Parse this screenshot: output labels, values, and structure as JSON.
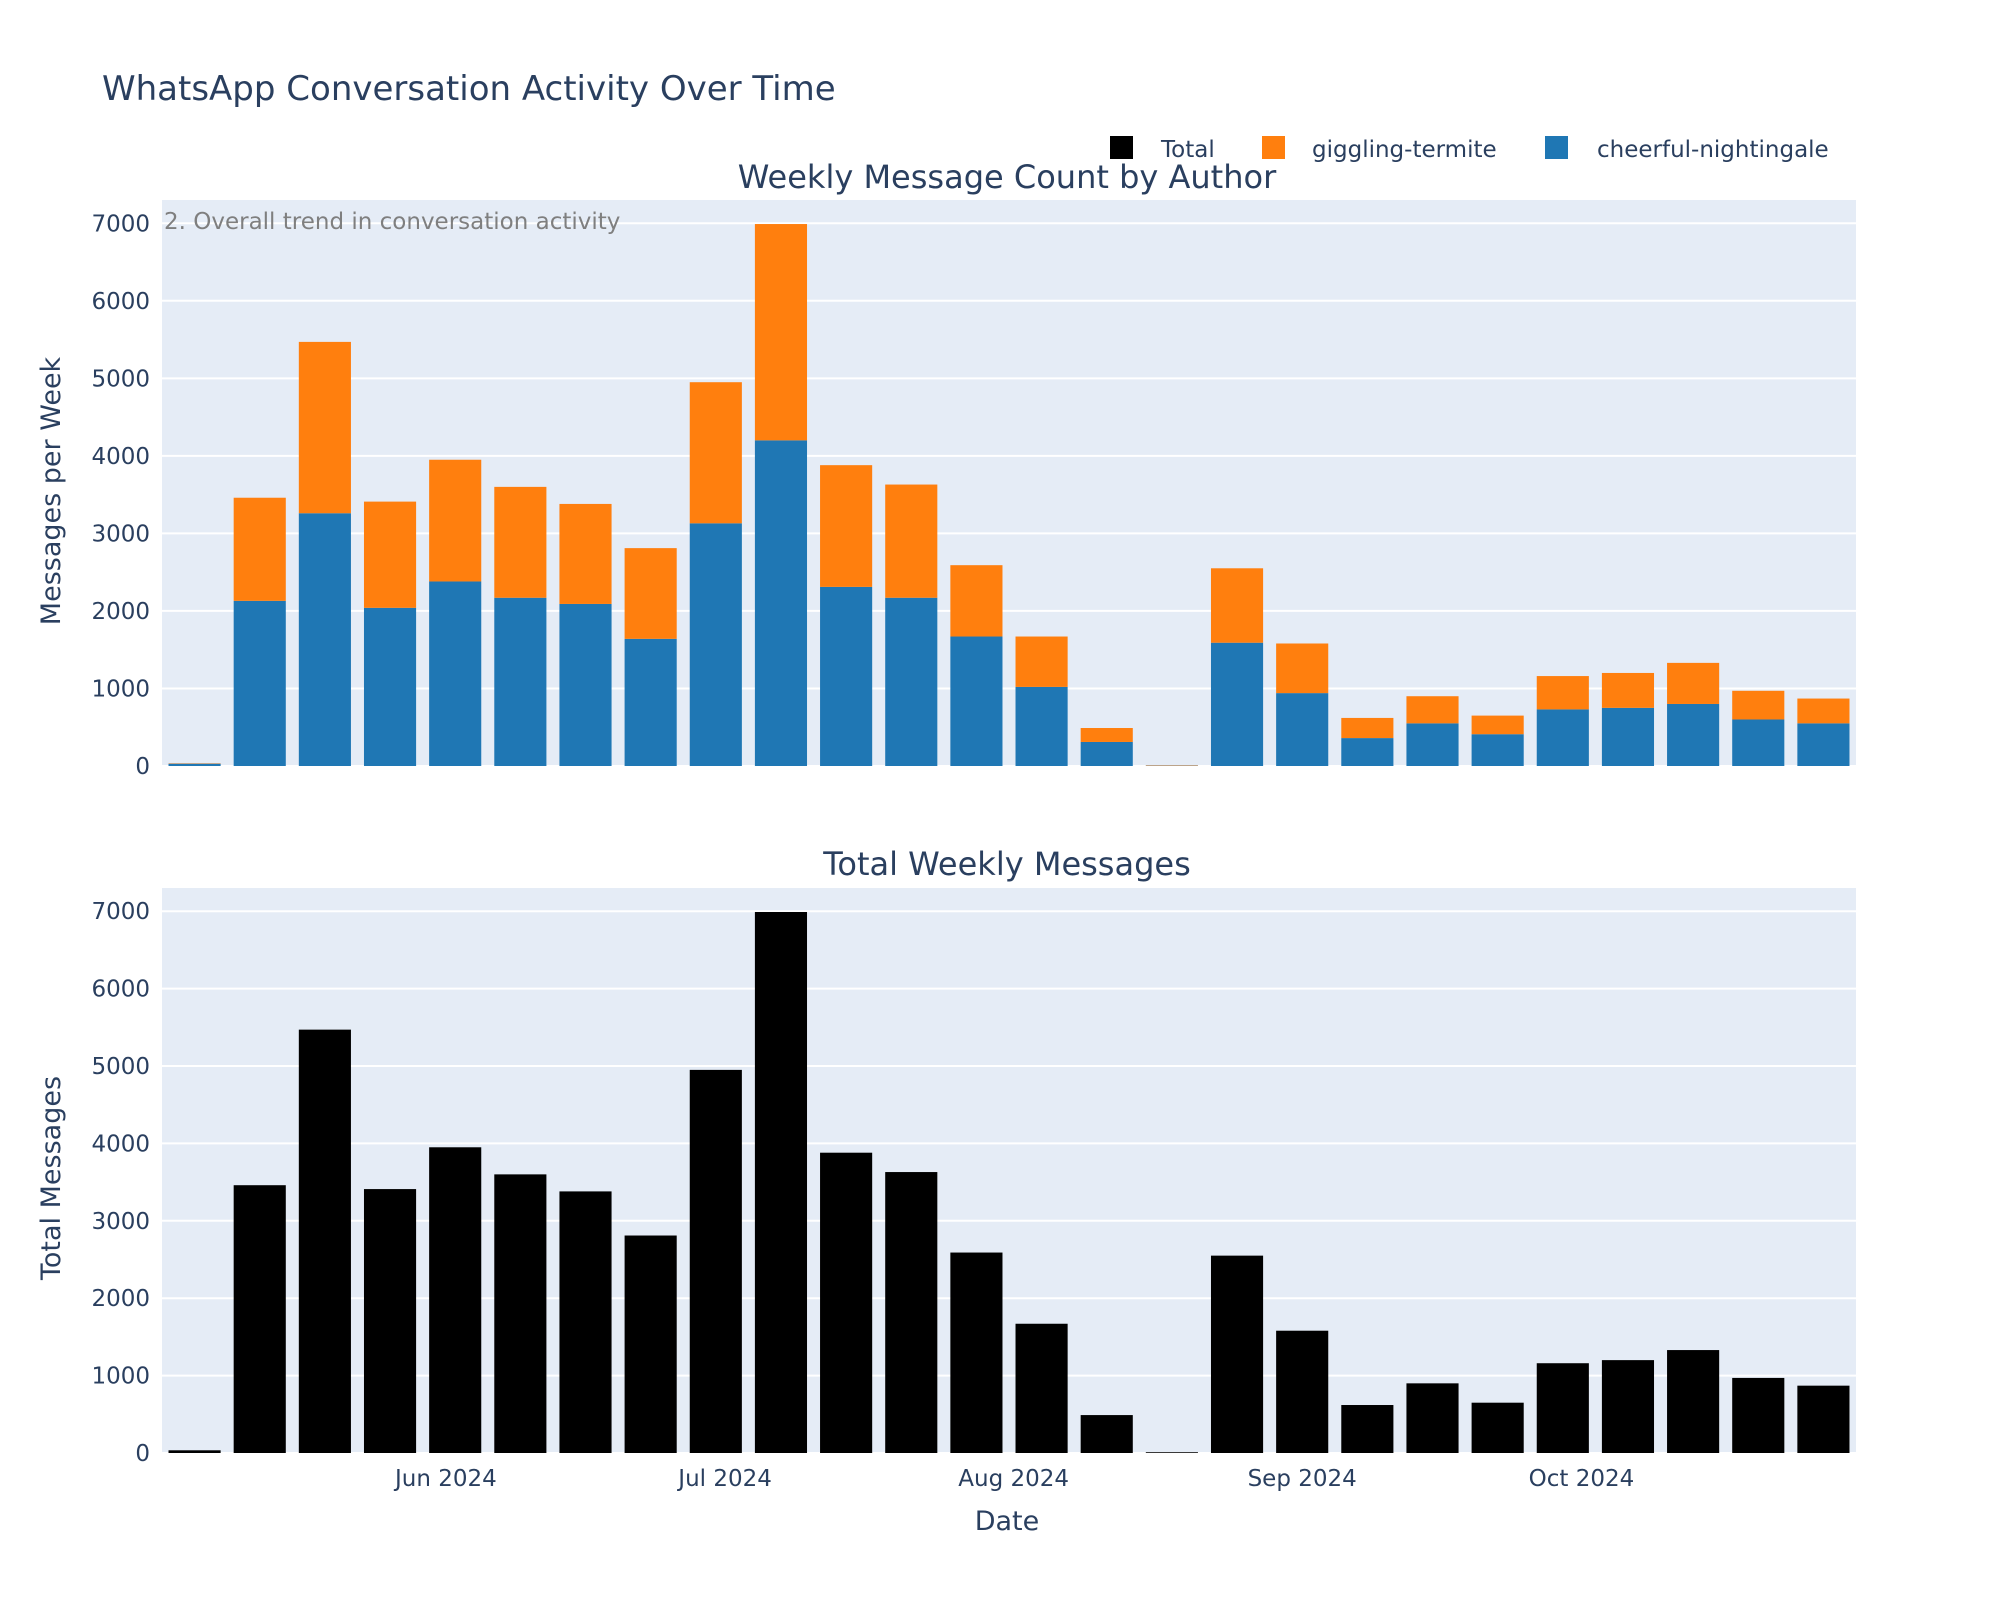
{
  "chart_data": {
    "type": "bar",
    "title": "WhatsApp Conversation Activity Over Time",
    "legend": {
      "placement": "top-right",
      "entries": [
        {
          "label": "Total",
          "color": "#000000"
        },
        {
          "label": "giggling-termite",
          "color": "#ff7f0e"
        },
        {
          "label": "cheerful-nightingale",
          "color": "#1f77b4"
        }
      ]
    },
    "x": [
      "2024-05-05",
      "2024-05-12",
      "2024-05-19",
      "2024-05-26",
      "2024-06-02",
      "2024-06-09",
      "2024-06-16",
      "2024-06-23",
      "2024-06-30",
      "2024-07-07",
      "2024-07-14",
      "2024-07-21",
      "2024-07-28",
      "2024-08-04",
      "2024-08-11",
      "2024-08-18",
      "2024-08-25",
      "2024-09-01",
      "2024-09-08",
      "2024-09-15",
      "2024-09-22",
      "2024-09-29",
      "2024-10-06",
      "2024-10-13",
      "2024-10-20",
      "2024-10-27"
    ],
    "xlabel": "Date",
    "x_ticks": [
      "Jun 2024",
      "Jul 2024",
      "Aug 2024",
      "Sep 2024",
      "Oct 2024"
    ],
    "subplots": [
      {
        "title": "Weekly Message Count by Author",
        "ylabel": "Messages per Week",
        "annotation": "2. Overall trend in conversation activity",
        "barmode": "stack",
        "ylim": [
          0,
          7300
        ],
        "y_ticks": [
          0,
          1000,
          2000,
          3000,
          4000,
          5000,
          6000,
          7000
        ],
        "grid": true,
        "series": [
          {
            "name": "cheerful-nightingale",
            "color": "#1f77b4",
            "values": [
              30,
              2130,
              3260,
              2040,
              2380,
              2170,
              2090,
              1640,
              3130,
              4200,
              2310,
              2170,
              1670,
              1020,
              310,
              5,
              1590,
              940,
              360,
              550,
              410,
              730,
              750,
              800,
              600,
              550
            ]
          },
          {
            "name": "giggling-termite",
            "color": "#ff7f0e",
            "values": [
              5,
              1330,
              2210,
              1370,
              1570,
              1430,
              1290,
              1170,
              1820,
              2790,
              1570,
              1460,
              920,
              650,
              180,
              5,
              960,
              640,
              260,
              350,
              240,
              430,
              450,
              530,
              370,
              320
            ]
          }
        ]
      },
      {
        "title": "Total Weekly Messages",
        "ylabel": "Total Messages",
        "ylim": [
          0,
          7300
        ],
        "y_ticks": [
          0,
          1000,
          2000,
          3000,
          4000,
          5000,
          6000,
          7000
        ],
        "grid": true,
        "series": [
          {
            "name": "Total",
            "color": "#000000",
            "values": [
              35,
              3460,
              5470,
              3410,
              3950,
              3600,
              3380,
              2810,
              4950,
              6990,
              3880,
              3630,
              2590,
              1670,
              490,
              10,
              2550,
              1580,
              620,
              900,
              650,
              1160,
              1200,
              1330,
              970,
              870
            ]
          }
        ]
      }
    ]
  }
}
